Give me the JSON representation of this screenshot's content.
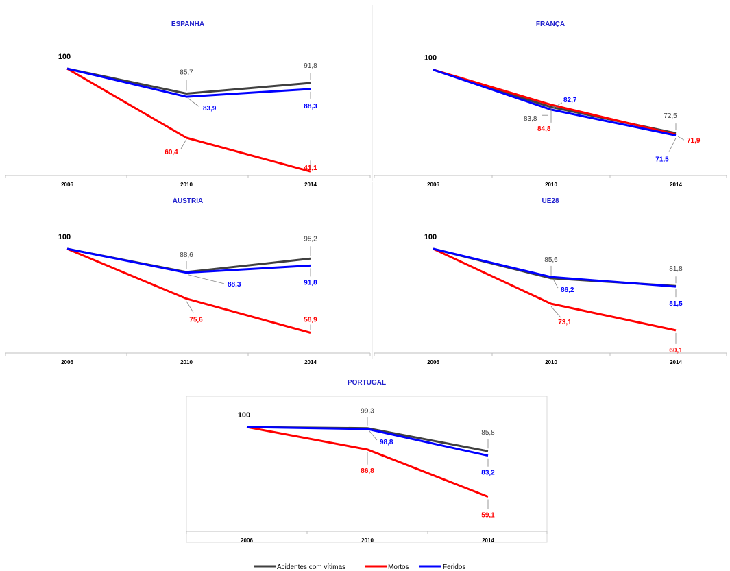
{
  "legend": [
    {
      "name": "Acidentes com vítimas",
      "color": "#404040"
    },
    {
      "name": "Mortos",
      "color": "#ff0000"
    },
    {
      "name": "Feridos",
      "color": "#0000ff"
    }
  ],
  "colors": {
    "title": "#1f1fcc",
    "acidentes": "#404040",
    "mortos": "#ff0000",
    "feridos": "#0000ff"
  },
  "chart_data": [
    {
      "type": "line",
      "title": "ESPANHA",
      "x": [
        "2006",
        "2010",
        "2014"
      ],
      "start_label": "100",
      "ylim": [
        40,
        102
      ],
      "series": [
        {
          "name": "Acidentes com vítimas",
          "values": [
            100,
            85.7,
            91.8
          ],
          "labels": [
            "",
            "85,7",
            "91,8"
          ]
        },
        {
          "name": "Mortos",
          "values": [
            100,
            60.4,
            41.1
          ],
          "labels": [
            "",
            "60,4",
            "41,1"
          ]
        },
        {
          "name": "Feridos",
          "values": [
            100,
            83.9,
            88.3
          ],
          "labels": [
            "",
            "83,9",
            "88,3"
          ]
        }
      ]
    },
    {
      "type": "line",
      "title": "FRANÇA",
      "x": [
        "2006",
        "2010",
        "2014"
      ],
      "start_label": "100",
      "ylim": [
        55,
        102
      ],
      "series": [
        {
          "name": "Acidentes com vítimas",
          "values": [
            100,
            83.8,
            72.5
          ],
          "labels": [
            "",
            "83,8",
            "72,5"
          ]
        },
        {
          "name": "Mortos",
          "values": [
            100,
            84.8,
            71.9
          ],
          "labels": [
            "",
            "84,8",
            "71,9"
          ]
        },
        {
          "name": "Feridos",
          "values": [
            100,
            82.7,
            71.5
          ],
          "labels": [
            "",
            "82,7",
            "71,5"
          ]
        }
      ]
    },
    {
      "type": "line",
      "title": "ÁUSTRIA",
      "x": [
        "2006",
        "2010",
        "2014"
      ],
      "start_label": "100",
      "ylim": [
        50,
        102
      ],
      "series": [
        {
          "name": "Acidentes com vítimas",
          "values": [
            100,
            88.6,
            95.2
          ],
          "labels": [
            "",
            "88,6",
            "95,2"
          ]
        },
        {
          "name": "Mortos",
          "values": [
            100,
            75.6,
            58.9
          ],
          "labels": [
            "",
            "75,6",
            "58,9"
          ]
        },
        {
          "name": "Feridos",
          "values": [
            100,
            88.3,
            91.8
          ],
          "labels": [
            "",
            "88,3",
            "91,8"
          ]
        }
      ]
    },
    {
      "type": "line",
      "title": "UE28",
      "x": [
        "2006",
        "2010",
        "2014"
      ],
      "start_label": "100",
      "ylim": [
        50,
        102
      ],
      "series": [
        {
          "name": "Acidentes com vítimas",
          "values": [
            100,
            85.6,
            81.8
          ],
          "labels": [
            "",
            "85,6",
            "81,8"
          ]
        },
        {
          "name": "Mortos",
          "values": [
            100,
            73.1,
            60.1
          ],
          "labels": [
            "",
            "73,1",
            "60,1"
          ]
        },
        {
          "name": "Feridos",
          "values": [
            100,
            86.2,
            81.5
          ],
          "labels": [
            "",
            "86,2",
            "81,5"
          ]
        }
      ]
    },
    {
      "type": "line",
      "title": "PORTUGAL",
      "x": [
        "2006",
        "2010",
        "2014"
      ],
      "start_label": "100",
      "ylim": [
        40,
        102
      ],
      "series": [
        {
          "name": "Acidentes com vítimas",
          "values": [
            100,
            99.3,
            85.8
          ],
          "labels": [
            "",
            "99,3",
            "85,8"
          ]
        },
        {
          "name": "Mortos",
          "values": [
            100,
            86.8,
            59.1
          ],
          "labels": [
            "",
            "86,8",
            "59,1"
          ]
        },
        {
          "name": "Feridos",
          "values": [
            100,
            98.8,
            83.2
          ],
          "labels": [
            "",
            "98,8",
            "83,2"
          ]
        }
      ]
    }
  ]
}
